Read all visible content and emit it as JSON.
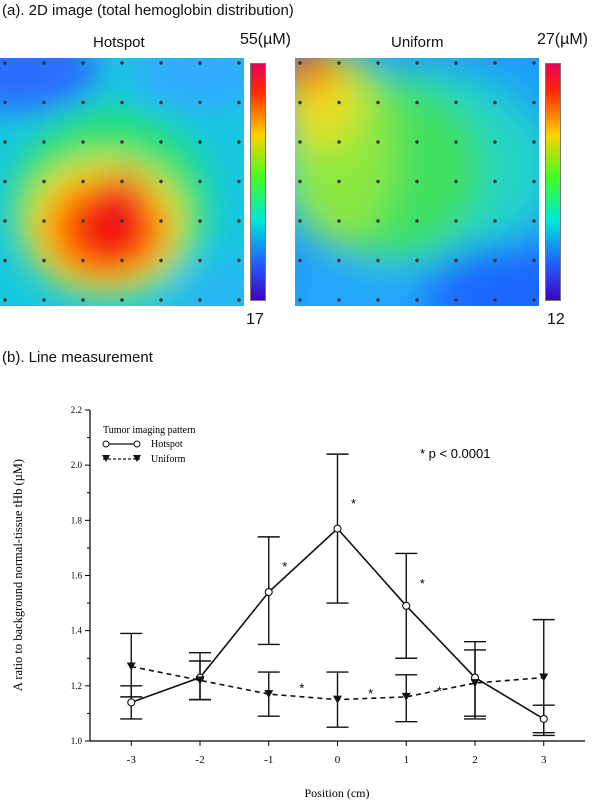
{
  "panel_a": {
    "heading": "(a). 2D image (total hemoglobin distribution)",
    "maps": [
      {
        "title": "Hotspot",
        "max_label": "55(µM)",
        "min_label": "17"
      },
      {
        "title": "Uniform",
        "max_label": "27(µM)",
        "min_label": "12"
      }
    ]
  },
  "panel_b": {
    "heading": "(b). Line measurement"
  },
  "chart_data": {
    "type": "line",
    "xlabel": "Position (cm)",
    "ylabel": "A ratio to background normal-tissue  tHb (µM)",
    "x": [
      -3,
      -2,
      -1,
      0,
      1,
      2,
      3
    ],
    "xticks": [
      "-3",
      "-2",
      "-1",
      "0",
      "1",
      "2",
      "3"
    ],
    "yticks": [
      "1.0",
      "1.2",
      "1.4",
      "1.6",
      "1.8",
      "2.0",
      "2.2"
    ],
    "xlim": [
      -3.6,
      3.6
    ],
    "ylim": [
      1.0,
      2.2
    ],
    "legend": {
      "title": "Tumor imaging pattern",
      "placement": "top-left",
      "entries": [
        "Hotspot",
        "Uniform"
      ]
    },
    "annotation": "* p < 0.0001",
    "series": [
      {
        "name": "Hotspot",
        "style": "solid-open-circle",
        "values": [
          1.14,
          1.23,
          1.54,
          1.77,
          1.49,
          1.23,
          1.08
        ],
        "err_low": [
          1.08,
          1.15,
          1.35,
          1.5,
          1.3,
          1.08,
          1.02
        ],
        "err_high": [
          1.2,
          1.32,
          1.74,
          2.04,
          1.68,
          1.36,
          1.13
        ]
      },
      {
        "name": "Uniform",
        "style": "dashed-filled-triangle",
        "values": [
          1.27,
          1.22,
          1.17,
          1.15,
          1.16,
          1.21,
          1.23
        ],
        "err_low": [
          1.16,
          1.15,
          1.09,
          1.05,
          1.07,
          1.09,
          1.03
        ],
        "err_high": [
          1.39,
          1.29,
          1.25,
          1.25,
          1.24,
          1.33,
          1.44
        ]
      }
    ],
    "stars": [
      {
        "x": -1,
        "y": 1.63
      },
      {
        "x": 0,
        "y": 1.86
      },
      {
        "x": 1,
        "y": 1.57
      },
      {
        "x": -0.75,
        "y": 1.19
      },
      {
        "x": 0.25,
        "y": 1.17
      },
      {
        "x": 1.25,
        "y": 1.18
      }
    ]
  }
}
